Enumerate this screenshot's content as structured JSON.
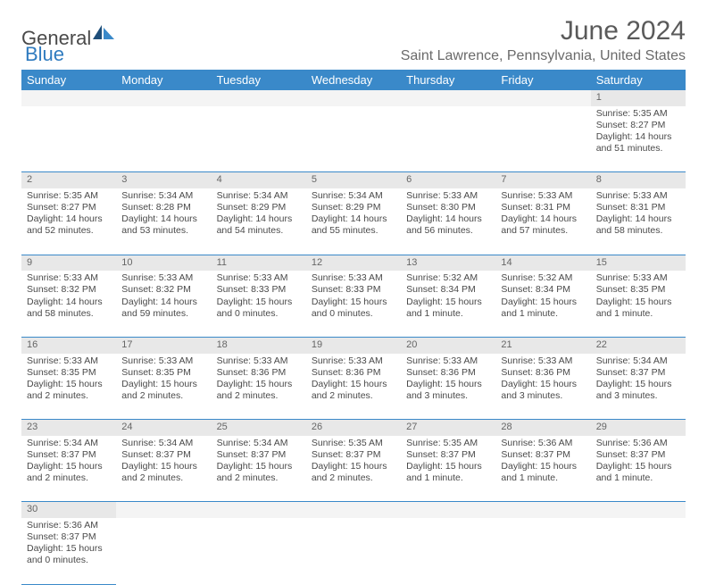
{
  "brand": {
    "part1": "General",
    "part2": "Blue"
  },
  "title": "June 2024",
  "location": "Saint Lawrence, Pennsylvania, United States",
  "colors": {
    "header_bg": "#3a89c9",
    "header_text": "#ffffff",
    "daynum_bg": "#e8e8e8",
    "cell_border": "#3a89c9",
    "text": "#4a4a4a",
    "title_text": "#5a5a5a",
    "location_text": "#6a6a6a",
    "brand_gray": "#4a4a4a",
    "brand_blue": "#2f7bbf"
  },
  "typography": {
    "title_fontsize": 30,
    "location_fontsize": 16,
    "dayhead_fontsize": 13,
    "cell_fontsize": 10.5
  },
  "weekdays": [
    "Sunday",
    "Monday",
    "Tuesday",
    "Wednesday",
    "Thursday",
    "Friday",
    "Saturday"
  ],
  "weeks": [
    [
      null,
      null,
      null,
      null,
      null,
      null,
      {
        "n": "1",
        "sr": "Sunrise: 5:35 AM",
        "ss": "Sunset: 8:27 PM",
        "d1": "Daylight: 14 hours",
        "d2": "and 51 minutes."
      }
    ],
    [
      {
        "n": "2",
        "sr": "Sunrise: 5:35 AM",
        "ss": "Sunset: 8:27 PM",
        "d1": "Daylight: 14 hours",
        "d2": "and 52 minutes."
      },
      {
        "n": "3",
        "sr": "Sunrise: 5:34 AM",
        "ss": "Sunset: 8:28 PM",
        "d1": "Daylight: 14 hours",
        "d2": "and 53 minutes."
      },
      {
        "n": "4",
        "sr": "Sunrise: 5:34 AM",
        "ss": "Sunset: 8:29 PM",
        "d1": "Daylight: 14 hours",
        "d2": "and 54 minutes."
      },
      {
        "n": "5",
        "sr": "Sunrise: 5:34 AM",
        "ss": "Sunset: 8:29 PM",
        "d1": "Daylight: 14 hours",
        "d2": "and 55 minutes."
      },
      {
        "n": "6",
        "sr": "Sunrise: 5:33 AM",
        "ss": "Sunset: 8:30 PM",
        "d1": "Daylight: 14 hours",
        "d2": "and 56 minutes."
      },
      {
        "n": "7",
        "sr": "Sunrise: 5:33 AM",
        "ss": "Sunset: 8:31 PM",
        "d1": "Daylight: 14 hours",
        "d2": "and 57 minutes."
      },
      {
        "n": "8",
        "sr": "Sunrise: 5:33 AM",
        "ss": "Sunset: 8:31 PM",
        "d1": "Daylight: 14 hours",
        "d2": "and 58 minutes."
      }
    ],
    [
      {
        "n": "9",
        "sr": "Sunrise: 5:33 AM",
        "ss": "Sunset: 8:32 PM",
        "d1": "Daylight: 14 hours",
        "d2": "and 58 minutes."
      },
      {
        "n": "10",
        "sr": "Sunrise: 5:33 AM",
        "ss": "Sunset: 8:32 PM",
        "d1": "Daylight: 14 hours",
        "d2": "and 59 minutes."
      },
      {
        "n": "11",
        "sr": "Sunrise: 5:33 AM",
        "ss": "Sunset: 8:33 PM",
        "d1": "Daylight: 15 hours",
        "d2": "and 0 minutes."
      },
      {
        "n": "12",
        "sr": "Sunrise: 5:33 AM",
        "ss": "Sunset: 8:33 PM",
        "d1": "Daylight: 15 hours",
        "d2": "and 0 minutes."
      },
      {
        "n": "13",
        "sr": "Sunrise: 5:32 AM",
        "ss": "Sunset: 8:34 PM",
        "d1": "Daylight: 15 hours",
        "d2": "and 1 minute."
      },
      {
        "n": "14",
        "sr": "Sunrise: 5:32 AM",
        "ss": "Sunset: 8:34 PM",
        "d1": "Daylight: 15 hours",
        "d2": "and 1 minute."
      },
      {
        "n": "15",
        "sr": "Sunrise: 5:33 AM",
        "ss": "Sunset: 8:35 PM",
        "d1": "Daylight: 15 hours",
        "d2": "and 1 minute."
      }
    ],
    [
      {
        "n": "16",
        "sr": "Sunrise: 5:33 AM",
        "ss": "Sunset: 8:35 PM",
        "d1": "Daylight: 15 hours",
        "d2": "and 2 minutes."
      },
      {
        "n": "17",
        "sr": "Sunrise: 5:33 AM",
        "ss": "Sunset: 8:35 PM",
        "d1": "Daylight: 15 hours",
        "d2": "and 2 minutes."
      },
      {
        "n": "18",
        "sr": "Sunrise: 5:33 AM",
        "ss": "Sunset: 8:36 PM",
        "d1": "Daylight: 15 hours",
        "d2": "and 2 minutes."
      },
      {
        "n": "19",
        "sr": "Sunrise: 5:33 AM",
        "ss": "Sunset: 8:36 PM",
        "d1": "Daylight: 15 hours",
        "d2": "and 2 minutes."
      },
      {
        "n": "20",
        "sr": "Sunrise: 5:33 AM",
        "ss": "Sunset: 8:36 PM",
        "d1": "Daylight: 15 hours",
        "d2": "and 3 minutes."
      },
      {
        "n": "21",
        "sr": "Sunrise: 5:33 AM",
        "ss": "Sunset: 8:36 PM",
        "d1": "Daylight: 15 hours",
        "d2": "and 3 minutes."
      },
      {
        "n": "22",
        "sr": "Sunrise: 5:34 AM",
        "ss": "Sunset: 8:37 PM",
        "d1": "Daylight: 15 hours",
        "d2": "and 3 minutes."
      }
    ],
    [
      {
        "n": "23",
        "sr": "Sunrise: 5:34 AM",
        "ss": "Sunset: 8:37 PM",
        "d1": "Daylight: 15 hours",
        "d2": "and 2 minutes."
      },
      {
        "n": "24",
        "sr": "Sunrise: 5:34 AM",
        "ss": "Sunset: 8:37 PM",
        "d1": "Daylight: 15 hours",
        "d2": "and 2 minutes."
      },
      {
        "n": "25",
        "sr": "Sunrise: 5:34 AM",
        "ss": "Sunset: 8:37 PM",
        "d1": "Daylight: 15 hours",
        "d2": "and 2 minutes."
      },
      {
        "n": "26",
        "sr": "Sunrise: 5:35 AM",
        "ss": "Sunset: 8:37 PM",
        "d1": "Daylight: 15 hours",
        "d2": "and 2 minutes."
      },
      {
        "n": "27",
        "sr": "Sunrise: 5:35 AM",
        "ss": "Sunset: 8:37 PM",
        "d1": "Daylight: 15 hours",
        "d2": "and 1 minute."
      },
      {
        "n": "28",
        "sr": "Sunrise: 5:36 AM",
        "ss": "Sunset: 8:37 PM",
        "d1": "Daylight: 15 hours",
        "d2": "and 1 minute."
      },
      {
        "n": "29",
        "sr": "Sunrise: 5:36 AM",
        "ss": "Sunset: 8:37 PM",
        "d1": "Daylight: 15 hours",
        "d2": "and 1 minute."
      }
    ],
    [
      {
        "n": "30",
        "sr": "Sunrise: 5:36 AM",
        "ss": "Sunset: 8:37 PM",
        "d1": "Daylight: 15 hours",
        "d2": "and 0 minutes."
      },
      null,
      null,
      null,
      null,
      null,
      null
    ]
  ]
}
